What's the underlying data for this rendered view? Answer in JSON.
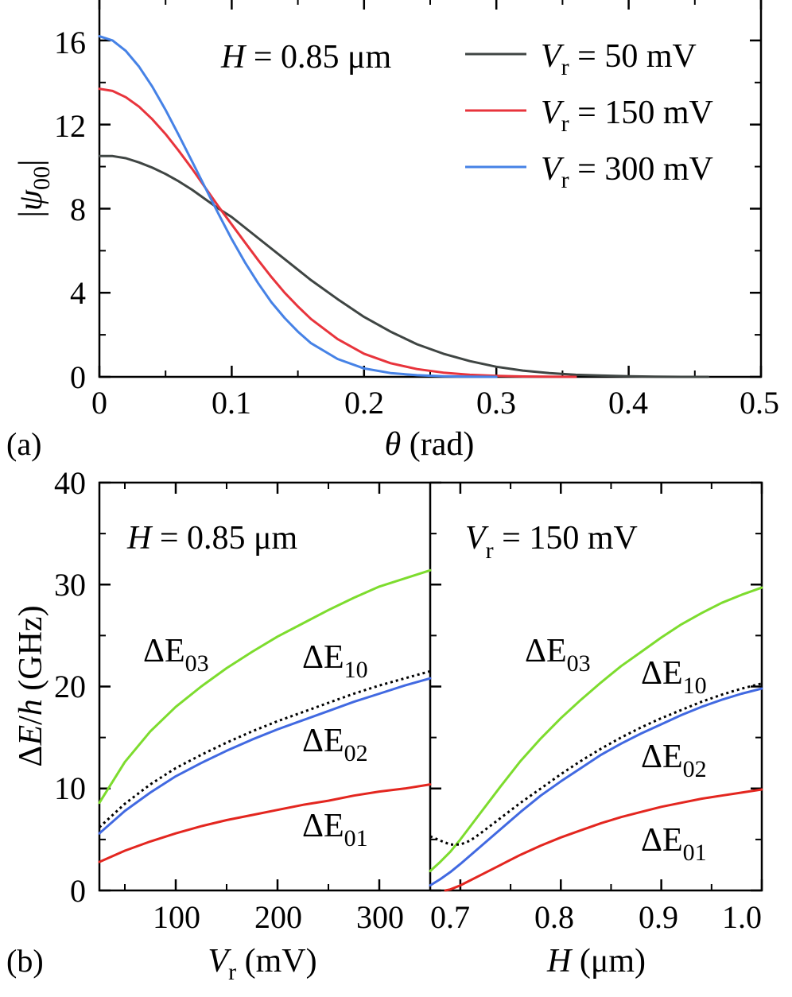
{
  "chart_data": [
    {
      "panel": "a",
      "panel_label": "(a)",
      "type": "line",
      "title": "",
      "annotation": {
        "var": "H",
        "rest": " = 0.85 μm"
      },
      "xlabel": {
        "var": "θ",
        "rest": " (rad)"
      },
      "ylabel": {
        "pre": "|",
        "var": "ψ",
        "sub": "00",
        "post": "|"
      },
      "xlim": [
        0,
        0.5
      ],
      "ylim": [
        0,
        18
      ],
      "xticks": [
        "0",
        "0.1",
        "0.2",
        "0.3",
        "0.4",
        "0.5"
      ],
      "yticks": [
        "0",
        "4",
        "8",
        "12",
        "16"
      ],
      "legend_position": "top-right",
      "series": [
        {
          "name": "Vr = 50 mV",
          "legend_var": "V",
          "legend_sub": "r",
          "legend_rest": " = 50 mV",
          "color": "#3f4543",
          "x": [
            0,
            0.01,
            0.02,
            0.03,
            0.04,
            0.05,
            0.06,
            0.07,
            0.08,
            0.09,
            0.1,
            0.12,
            0.14,
            0.16,
            0.18,
            0.2,
            0.22,
            0.24,
            0.26,
            0.28,
            0.3,
            0.32,
            0.34,
            0.36,
            0.38,
            0.4,
            0.42,
            0.44,
            0.46
          ],
          "y": [
            10.5,
            10.5,
            10.4,
            10.2,
            9.95,
            9.65,
            9.3,
            8.9,
            8.45,
            8.0,
            7.6,
            6.6,
            5.6,
            4.6,
            3.7,
            2.85,
            2.15,
            1.55,
            1.1,
            0.75,
            0.48,
            0.3,
            0.18,
            0.1,
            0.06,
            0.03,
            0.01,
            0.0,
            0.0
          ]
        },
        {
          "name": "Vr = 150 mV",
          "legend_var": "V",
          "legend_sub": "r",
          "legend_rest": " = 150 mV",
          "color": "#e8343c",
          "x": [
            0,
            0.01,
            0.02,
            0.03,
            0.04,
            0.05,
            0.06,
            0.07,
            0.08,
            0.09,
            0.1,
            0.11,
            0.12,
            0.13,
            0.14,
            0.15,
            0.16,
            0.18,
            0.2,
            0.22,
            0.24,
            0.26,
            0.28,
            0.3,
            0.32,
            0.34,
            0.36
          ],
          "y": [
            13.7,
            13.6,
            13.3,
            12.85,
            12.25,
            11.55,
            10.75,
            9.9,
            9.0,
            8.1,
            7.25,
            6.4,
            5.55,
            4.75,
            4.0,
            3.35,
            2.75,
            1.8,
            1.1,
            0.65,
            0.37,
            0.2,
            0.1,
            0.05,
            0.02,
            0.01,
            0.0
          ]
        },
        {
          "name": "Vr = 300 mV",
          "legend_var": "V",
          "legend_sub": "r",
          "legend_rest": " = 300 mV",
          "color": "#4682e6",
          "x": [
            0,
            0.01,
            0.02,
            0.03,
            0.04,
            0.05,
            0.06,
            0.07,
            0.08,
            0.09,
            0.1,
            0.11,
            0.12,
            0.13,
            0.14,
            0.15,
            0.16,
            0.18,
            0.2,
            0.22,
            0.24,
            0.26,
            0.28,
            0.3
          ],
          "y": [
            16.2,
            16.0,
            15.5,
            14.75,
            13.8,
            12.7,
            11.5,
            10.25,
            9.0,
            7.75,
            6.55,
            5.45,
            4.45,
            3.55,
            2.8,
            2.15,
            1.6,
            0.85,
            0.4,
            0.18,
            0.08,
            0.03,
            0.01,
            0.0
          ]
        }
      ]
    },
    {
      "panel": "b-left",
      "panel_label": "(b)",
      "type": "line",
      "title": "",
      "annotation": {
        "var": "H",
        "rest": " = 0.85 μm"
      },
      "xlabel": {
        "var": "V",
        "sub": "r",
        "rest": " (mV)"
      },
      "ylabel": {
        "pre": "Δ",
        "var": "E",
        "mid": "/",
        "var2": "h",
        "post": " (GHz)"
      },
      "xlim": [
        25,
        350
      ],
      "ylim": [
        0,
        40
      ],
      "xticks": [
        "100",
        "200",
        "300"
      ],
      "xtick_values": [
        100,
        200,
        300
      ],
      "yticks": [
        "0",
        "10",
        "20",
        "30",
        "40"
      ],
      "curve_labels": [
        {
          "text": "ΔE",
          "sub": "03"
        },
        {
          "text": "ΔE",
          "sub": "10"
        },
        {
          "text": "ΔE",
          "sub": "02"
        },
        {
          "text": "ΔE",
          "sub": "01"
        }
      ],
      "series": [
        {
          "name": "ΔE03",
          "color": "#7ddc2e",
          "dashed": false,
          "x": [
            25,
            50,
            75,
            100,
            125,
            150,
            175,
            200,
            225,
            250,
            275,
            300,
            325,
            350
          ],
          "y": [
            8.6,
            12.6,
            15.6,
            18.0,
            20.0,
            21.8,
            23.4,
            24.9,
            26.2,
            27.5,
            28.7,
            29.8,
            30.6,
            31.4
          ]
        },
        {
          "name": "ΔE10",
          "color": "#000000",
          "dashed": true,
          "x": [
            25,
            50,
            75,
            100,
            125,
            150,
            175,
            200,
            225,
            250,
            275,
            300,
            325,
            350
          ],
          "y": [
            6.2,
            8.5,
            10.4,
            12.0,
            13.3,
            14.5,
            15.6,
            16.6,
            17.5,
            18.4,
            19.3,
            20.1,
            20.8,
            21.5
          ]
        },
        {
          "name": "ΔE02",
          "color": "#4169e1",
          "dashed": false,
          "x": [
            25,
            50,
            75,
            100,
            125,
            150,
            175,
            200,
            225,
            250,
            275,
            300,
            325,
            350
          ],
          "y": [
            5.6,
            7.8,
            9.6,
            11.2,
            12.5,
            13.7,
            14.8,
            15.8,
            16.7,
            17.6,
            18.5,
            19.3,
            20.1,
            20.8
          ]
        },
        {
          "name": "ΔE01",
          "color": "#e3261f",
          "dashed": false,
          "x": [
            25,
            50,
            75,
            100,
            125,
            150,
            175,
            200,
            225,
            250,
            275,
            300,
            325,
            350
          ],
          "y": [
            2.8,
            3.9,
            4.8,
            5.6,
            6.3,
            6.9,
            7.4,
            7.9,
            8.4,
            8.8,
            9.3,
            9.7,
            10.0,
            10.4
          ]
        }
      ]
    },
    {
      "panel": "b-right",
      "type": "line",
      "title": "",
      "annotation": {
        "var": "V",
        "sub": "r",
        "rest": " = 150 mV"
      },
      "xlabel": {
        "var": "H",
        "rest": " (μm)"
      },
      "xlim": [
        0.67,
        1.0
      ],
      "ylim": [
        0,
        40
      ],
      "xticks": [
        "0.7",
        "0.8",
        "0.9",
        "1.0"
      ],
      "xtick_values": [
        0.7,
        0.8,
        0.9,
        1.0
      ],
      "curve_labels": [
        {
          "text": "ΔE",
          "sub": "03"
        },
        {
          "text": "ΔE",
          "sub": "10"
        },
        {
          "text": "ΔE",
          "sub": "02"
        },
        {
          "text": "ΔE",
          "sub": "01"
        }
      ],
      "series": [
        {
          "name": "ΔE03",
          "color": "#7ddc2e",
          "dashed": false,
          "x": [
            0.67,
            0.68,
            0.69,
            0.7,
            0.72,
            0.74,
            0.76,
            0.78,
            0.8,
            0.82,
            0.84,
            0.86,
            0.88,
            0.9,
            0.92,
            0.94,
            0.96,
            0.98,
            1.0
          ],
          "y": [
            1.9,
            2.8,
            3.8,
            5.0,
            7.6,
            10.2,
            12.7,
            14.9,
            16.9,
            18.7,
            20.4,
            22.0,
            23.4,
            24.8,
            26.1,
            27.2,
            28.2,
            29.0,
            29.7
          ]
        },
        {
          "name": "ΔE10",
          "color": "#000000",
          "dashed": true,
          "x": [
            0.67,
            0.68,
            0.69,
            0.7,
            0.71,
            0.72,
            0.74,
            0.76,
            0.78,
            0.8,
            0.82,
            0.84,
            0.86,
            0.88,
            0.9,
            0.92,
            0.94,
            0.96,
            0.98,
            1.0
          ],
          "y": [
            5.3,
            4.9,
            4.5,
            4.5,
            4.9,
            5.6,
            7.1,
            8.6,
            10.0,
            11.4,
            12.7,
            13.9,
            15.0,
            16.0,
            16.9,
            17.7,
            18.5,
            19.2,
            19.8,
            20.3
          ]
        },
        {
          "name": "ΔE02",
          "color": "#4169e1",
          "dashed": false,
          "x": [
            0.67,
            0.68,
            0.69,
            0.7,
            0.72,
            0.74,
            0.76,
            0.78,
            0.8,
            0.82,
            0.84,
            0.86,
            0.88,
            0.9,
            0.92,
            0.94,
            0.96,
            0.98,
            1.0
          ],
          "y": [
            0.5,
            1.1,
            1.8,
            2.6,
            4.3,
            6.0,
            7.7,
            9.3,
            10.7,
            12.0,
            13.3,
            14.4,
            15.4,
            16.3,
            17.2,
            18.0,
            18.7,
            19.3,
            19.8
          ]
        },
        {
          "name": "ΔE01",
          "color": "#e3261f",
          "dashed": false,
          "x": [
            0.685,
            0.69,
            0.7,
            0.72,
            0.74,
            0.76,
            0.78,
            0.8,
            0.82,
            0.84,
            0.86,
            0.88,
            0.9,
            0.92,
            0.94,
            0.96,
            0.98,
            1.0
          ],
          "y": [
            0.0,
            0.1,
            0.5,
            1.5,
            2.5,
            3.5,
            4.4,
            5.2,
            5.9,
            6.6,
            7.2,
            7.7,
            8.2,
            8.6,
            9.0,
            9.3,
            9.6,
            9.9
          ]
        }
      ]
    }
  ]
}
